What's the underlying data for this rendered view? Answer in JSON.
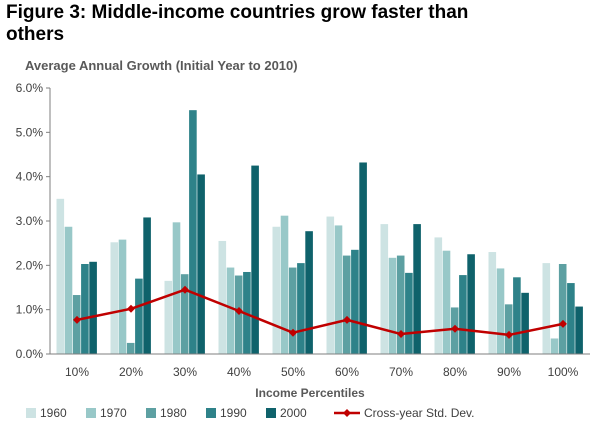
{
  "figure": {
    "title": "Figure 3: Middle-income countries grow faster than others",
    "subtitle": "Average Annual Growth (Initial Year to 2010)"
  },
  "chart_data": {
    "type": "bar",
    "title": "Figure 3: Middle-income countries grow faster than others",
    "subtitle": "Average Annual Growth (Initial Year to 2010)",
    "xlabel": "Income Percentiles",
    "ylabel": "",
    "categories": [
      "10%",
      "20%",
      "30%",
      "40%",
      "50%",
      "60%",
      "70%",
      "80%",
      "90%",
      "100%"
    ],
    "ylim": [
      0,
      6
    ],
    "yticks": [
      0,
      1,
      2,
      3,
      4,
      5,
      6
    ],
    "ytick_labels": [
      "0.0%",
      "1.0%",
      "2.0%",
      "3.0%",
      "4.0%",
      "5.0%",
      "6.0%"
    ],
    "grid": false,
    "legend_position": "bottom",
    "series": [
      {
        "name": "1960",
        "kind": "bar",
        "color": "#cde3e3",
        "values": [
          3.5,
          2.52,
          1.65,
          2.55,
          2.87,
          3.1,
          2.93,
          2.63,
          2.3,
          2.05
        ]
      },
      {
        "name": "1970",
        "kind": "bar",
        "color": "#98c8c8",
        "values": [
          2.87,
          2.58,
          2.97,
          1.95,
          3.12,
          2.9,
          2.17,
          2.33,
          1.93,
          0.35
        ]
      },
      {
        "name": "1980",
        "kind": "bar",
        "color": "#5da0a2",
        "values": [
          1.33,
          0.25,
          1.8,
          1.77,
          1.95,
          2.22,
          2.22,
          1.05,
          1.12,
          2.03
        ]
      },
      {
        "name": "1990",
        "kind": "bar",
        "color": "#2e8289",
        "values": [
          2.03,
          1.7,
          5.5,
          1.85,
          2.05,
          2.35,
          1.83,
          1.78,
          1.73,
          1.6
        ]
      },
      {
        "name": "2000",
        "kind": "bar",
        "color": "#0f626b",
        "values": [
          2.08,
          3.08,
          4.05,
          4.25,
          2.77,
          4.32,
          2.93,
          2.25,
          1.38,
          1.07
        ]
      },
      {
        "name": "Cross-year Std. Dev.",
        "kind": "line",
        "color": "#c00000",
        "values": [
          0.77,
          1.02,
          1.45,
          0.97,
          0.48,
          0.77,
          0.45,
          0.57,
          0.43,
          0.68
        ]
      }
    ]
  }
}
